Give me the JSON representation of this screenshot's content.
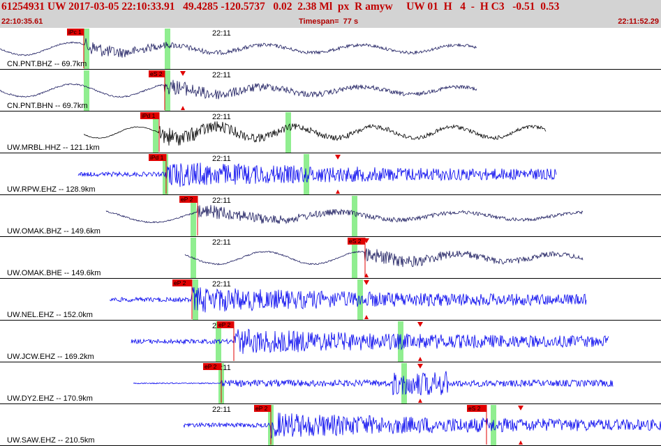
{
  "header": {
    "title": "61254931 UW 2017-03-05 22:10:33.91   49.4285 -120.5737   0.02  2.38 Ml  px  R amyw     UW 01  H   4  -  H C3   -0.51  0.53",
    "start_time": "22:10:35.61",
    "timespan": "Timespan=  77 s",
    "end_time": "22:11:52.29"
  },
  "colors": {
    "background": "#ffffff",
    "header_bg": "#d3d3d3",
    "header_text": "#c00000",
    "trace_broadband": "#1a1a5e",
    "trace_black": "#000000",
    "trace_shortperiod": "#0000ee",
    "pick_flag": "#e00000",
    "pick_window": "#90ee90",
    "divider": "#000000"
  },
  "minute_mark": "22:11",
  "traces": [
    {
      "label": "CN.PNT.BHZ -- 69.7km",
      "kind": "broadband",
      "pick": "iPc 1",
      "amp": "large-low"
    },
    {
      "label": "CN.PNT.BHN -- 69.7km",
      "kind": "broadband",
      "pick": "eS 2",
      "amp": "medium"
    },
    {
      "label": "UW.MRBL.HHZ -- 121.1km",
      "kind": "black",
      "pick": "iPd 1",
      "amp": "large"
    },
    {
      "label": "UW.RPW.EHZ -- 128.9km",
      "kind": "shortperiod",
      "pick": "iPd 1",
      "amp": "noise"
    },
    {
      "label": "UW.OMAK.BHZ -- 149.6km",
      "kind": "broadband",
      "pick": "eP 2",
      "amp": "low"
    },
    {
      "label": "UW.OMAK.BHE -- 149.6km",
      "kind": "broadband",
      "pick": "eS 2",
      "amp": "medium"
    },
    {
      "label": "UW.NEL.EHZ -- 152.0km",
      "kind": "shortperiod",
      "pick": "eP 2",
      "amp": "noise"
    },
    {
      "label": "UW.JCW.EHZ -- 169.2km",
      "kind": "shortperiod",
      "pick": "eP 2",
      "amp": "large"
    },
    {
      "label": "UW.DY2.EHZ -- 170.9km",
      "kind": "shortperiod",
      "pick": "eP 2",
      "amp": "quiet"
    },
    {
      "label": "UW.SAW.EHZ -- 210.5km",
      "kind": "shortperiod",
      "pick": "eP 2",
      "pick2": "eS 2",
      "amp": "noise"
    }
  ]
}
